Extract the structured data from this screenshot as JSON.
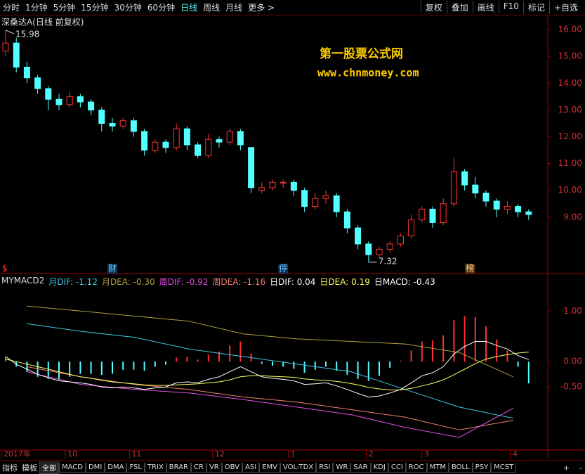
{
  "toolbar": {
    "left": [
      "分时",
      "1分钟",
      "5分钟",
      "15分钟",
      "30分钟",
      "60分钟",
      "日线",
      "周线",
      "月线",
      "更多 >"
    ],
    "active_index": 6,
    "right": [
      "复权",
      "叠加",
      "画线",
      "F10",
      "标记",
      "+自选"
    ]
  },
  "price_panel": {
    "title": "深桑达A(日线 前复权)",
    "watermark": [
      "第一股票公式网",
      "www.chnmoney.com"
    ],
    "left_marker": "$",
    "ylim": [
      7,
      16.45
    ],
    "yticks": [
      {
        "value": 16,
        "label": "16.00"
      },
      {
        "value": 15,
        "label": "15.00"
      },
      {
        "value": 14,
        "label": "14.00"
      },
      {
        "value": 13,
        "label": "13.00"
      },
      {
        "value": 12,
        "label": "12.00"
      },
      {
        "value": 11,
        "label": "11.00"
      },
      {
        "value": 10,
        "label": "10.00"
      },
      {
        "value": 9,
        "label": "9.00"
      }
    ],
    "up_color": "#ff3232",
    "down_color": "#54ffff",
    "candles": {
      "open": [
        15.2,
        15.5,
        14.6,
        14.2,
        13.8,
        13.4,
        13.2,
        13.5,
        13.3,
        13.0,
        12.5,
        12.4,
        12.6,
        12.2,
        11.5,
        11.8,
        11.6,
        12.3,
        11.7,
        11.3,
        11.9,
        11.8,
        12.2,
        11.6,
        10.0,
        10.1,
        10.3,
        10.3,
        10.0,
        9.4,
        9.7,
        9.8,
        9.2,
        8.6,
        8.0,
        7.6,
        7.8,
        8.0,
        8.3,
        8.9,
        9.3,
        8.8,
        9.5,
        10.7,
        10.2,
        9.9,
        9.6,
        9.3,
        9.4,
        9.2
      ],
      "close": [
        15.5,
        14.6,
        14.2,
        13.8,
        13.4,
        13.2,
        13.5,
        13.3,
        13.0,
        12.5,
        12.4,
        12.6,
        12.2,
        11.5,
        11.8,
        11.6,
        12.3,
        11.7,
        11.3,
        11.9,
        11.8,
        12.2,
        11.7,
        10.1,
        10.1,
        10.3,
        10.3,
        10.0,
        9.4,
        9.7,
        9.8,
        9.2,
        8.6,
        8.0,
        7.6,
        7.8,
        8.0,
        8.3,
        8.9,
        9.3,
        8.8,
        9.5,
        10.7,
        10.2,
        9.9,
        9.6,
        9.3,
        9.4,
        9.2,
        9.1
      ],
      "high": [
        15.98,
        15.7,
        14.8,
        14.3,
        13.9,
        13.6,
        13.7,
        13.6,
        13.4,
        13.1,
        12.7,
        12.7,
        12.7,
        12.3,
        11.9,
        11.9,
        12.5,
        12.4,
        11.8,
        12.1,
        12.0,
        12.3,
        12.3,
        11.6,
        10.3,
        10.4,
        10.4,
        10.4,
        10.1,
        9.9,
        10.0,
        9.9,
        9.3,
        8.7,
        8.1,
        7.9,
        8.1,
        8.4,
        9.1,
        9.4,
        9.4,
        9.7,
        11.2,
        10.8,
        10.5,
        10.0,
        9.7,
        9.6,
        9.5,
        9.3
      ],
      "low": [
        15.0,
        14.4,
        14.0,
        13.6,
        13.0,
        13.0,
        13.1,
        13.1,
        12.8,
        12.2,
        12.2,
        12.3,
        12.0,
        11.3,
        11.4,
        11.4,
        11.5,
        11.5,
        11.2,
        11.2,
        11.6,
        11.7,
        11.5,
        9.9,
        9.9,
        10.0,
        10.1,
        9.8,
        9.2,
        9.3,
        9.5,
        9.0,
        8.4,
        7.8,
        7.32,
        7.5,
        7.7,
        7.9,
        8.2,
        8.8,
        8.6,
        8.7,
        9.4,
        10.0,
        9.7,
        9.4,
        9.0,
        9.1,
        9.0,
        8.9
      ]
    },
    "max_label": {
      "value": 15.98,
      "index": 0
    },
    "min_label": {
      "value": 7.32,
      "index": 34
    },
    "markers": [
      {
        "text": "财",
        "index": 10
      },
      {
        "text": "停",
        "index": 26
      },
      {
        "text": "榜",
        "index": 43.5
      }
    ]
  },
  "macd_panel": {
    "name": "MYMACD2",
    "legend": [
      {
        "text": "月DIF: -1.12",
        "color": "#3cc8e0"
      },
      {
        "text": "月DEA: -0.30",
        "color": "#b0a040"
      },
      {
        "text": "周DIF: -0.92",
        "color": "#e050e0"
      },
      {
        "text": "周DEA: -1.16",
        "color": "#f08070"
      },
      {
        "text": "日DIF: 0.04",
        "color": "#ffffff"
      },
      {
        "text": "日DEA: 0.19",
        "color": "#ffff60"
      },
      {
        "text": "日MACD: -0.43",
        "color": "#ffffff"
      }
    ],
    "ylim": [
      -1.75,
      1.45
    ],
    "yticks": [
      {
        "value": 1,
        "label": "1.00"
      },
      {
        "value": 0,
        "label": "0.00"
      },
      {
        "value": -0.5,
        "label": "-0.50"
      }
    ],
    "daily": {
      "dif": [
        0.1,
        -0.05,
        -0.15,
        -0.25,
        -0.32,
        -0.38,
        -0.4,
        -0.42,
        -0.45,
        -0.5,
        -0.52,
        -0.5,
        -0.52,
        -0.55,
        -0.52,
        -0.5,
        -0.42,
        -0.4,
        -0.42,
        -0.35,
        -0.3,
        -0.2,
        -0.1,
        -0.2,
        -0.3,
        -0.33,
        -0.35,
        -0.38,
        -0.45,
        -0.44,
        -0.42,
        -0.48,
        -0.55,
        -0.63,
        -0.7,
        -0.68,
        -0.62,
        -0.55,
        -0.42,
        -0.28,
        -0.22,
        -0.1,
        0.15,
        0.3,
        0.4,
        0.4,
        0.32,
        0.25,
        0.12,
        0.04
      ],
      "dea": [
        0.05,
        0.0,
        -0.05,
        -0.1,
        -0.15,
        -0.2,
        -0.25,
        -0.3,
        -0.33,
        -0.37,
        -0.4,
        -0.42,
        -0.44,
        -0.46,
        -0.47,
        -0.47,
        -0.46,
        -0.45,
        -0.44,
        -0.42,
        -0.4,
        -0.36,
        -0.3,
        -0.28,
        -0.28,
        -0.29,
        -0.3,
        -0.31,
        -0.34,
        -0.36,
        -0.37,
        -0.39,
        -0.42,
        -0.46,
        -0.51,
        -0.54,
        -0.56,
        -0.56,
        -0.53,
        -0.48,
        -0.43,
        -0.36,
        -0.26,
        -0.15,
        -0.04,
        0.05,
        0.1,
        0.14,
        0.17,
        0.19
      ],
      "macd": [
        0.1,
        -0.1,
        -0.2,
        -0.3,
        -0.34,
        -0.36,
        -0.3,
        -0.24,
        -0.24,
        -0.26,
        -0.24,
        -0.16,
        -0.16,
        -0.18,
        -0.1,
        -0.06,
        0.08,
        0.1,
        0.04,
        0.14,
        0.2,
        0.32,
        0.4,
        0.16,
        -0.04,
        -0.08,
        -0.1,
        -0.14,
        -0.22,
        -0.16,
        -0.1,
        -0.18,
        -0.26,
        -0.34,
        -0.38,
        -0.28,
        -0.12,
        0.02,
        0.22,
        0.4,
        0.42,
        0.52,
        0.82,
        0.9,
        0.88,
        0.7,
        0.44,
        0.22,
        -0.1,
        -0.43
      ]
    },
    "monthly": {
      "dif": [
        0.75,
        0.6,
        0.48,
        0.25,
        0.1,
        -0.05,
        -0.2,
        -0.55,
        -0.9,
        -1.12
      ],
      "dea": [
        1.1,
        1.0,
        0.9,
        0.8,
        0.55,
        0.45,
        0.4,
        0.35,
        0.18,
        -0.3
      ]
    },
    "weekly": {
      "dif": [
        -0.2,
        -0.45,
        -0.55,
        -0.62,
        -0.75,
        -0.9,
        -1.05,
        -1.3,
        -1.5,
        -0.92
      ],
      "dea": [
        -0.1,
        -0.3,
        -0.45,
        -0.55,
        -0.7,
        -0.8,
        -0.95,
        -1.1,
        -1.35,
        -1.16
      ]
    },
    "line_colors": {
      "daily_dif": "#ffffff",
      "daily_dea": "#ffff60",
      "monthly_dif": "#3cc8e0",
      "monthly_dea": "#b0a040",
      "weekly_dif": "#e050e0",
      "weekly_dea": "#f08070"
    }
  },
  "x_axis": {
    "labels": [
      {
        "text": "2017年",
        "index": 0
      },
      {
        "text": "10",
        "index": 5.6
      },
      {
        "text": "11",
        "index": 11.6
      },
      {
        "text": "12",
        "index": 19.4
      },
      {
        "text": "1",
        "index": 26.5
      },
      {
        "text": "2",
        "index": 33.8
      },
      {
        "text": "3",
        "index": 39
      },
      {
        "text": "4",
        "index": 47.3
      }
    ]
  },
  "bottom_bar": {
    "left": [
      "指标",
      "模板"
    ],
    "tabs": [
      "全部",
      "MACD",
      "DMI",
      "DMA",
      "FSL",
      "TRIX",
      "BRAR",
      "CR",
      "VR",
      "OBV",
      "ASI",
      "EMV",
      "VOL-TDX",
      "RSI",
      "WR",
      "SAR",
      "KDJ",
      "CCI",
      "ROC",
      "MTM",
      "BOLL",
      "PSY",
      "MCST"
    ],
    "active_index": 0,
    "right": [
      "+",
      "-"
    ]
  }
}
